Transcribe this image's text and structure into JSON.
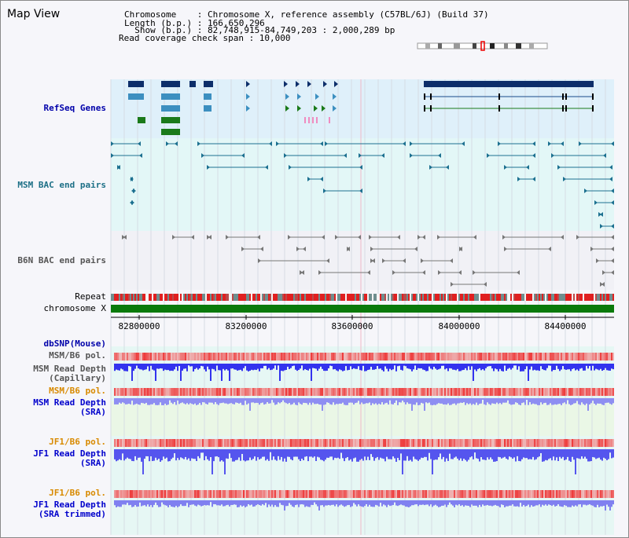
{
  "title": "Map View",
  "info": {
    "chromosome": "Chromosome    : Chromosome X, reference assembly (C57BL/6J) (Build 37)",
    "length": "Length (b.p.) : 166,650,296",
    "show": "  Show (b.p.) : 82,748,915-84,749,203 : 2,000,289 bp",
    "coverage": "Read coverage check span : 10,000"
  },
  "tracks": {
    "refseq": "RefSeq Genes",
    "msm_bac": "MSM BAC end pairs",
    "b6n_bac": "B6N BAC end pairs",
    "repeat": "Repeat",
    "chromosome": "chromosome X",
    "dbsnp": "dbSNP(Mouse)",
    "msm_b6_pol_1": "MSM/B6 pol.",
    "msm_depth_cap": "MSM Read Depth\n(Capillary)",
    "msm_b6_pol_2": "MSM/B6 pol.",
    "msm_depth_sra": "MSM Read Depth\n(SRA)",
    "jf1_b6_pol_1": "JF1/B6 pol.",
    "jf1_depth_sra": "JF1 Read Depth\n(SRA)",
    "jf1_b6_pol_2": "JF1/B6 pol.",
    "jf1_depth_trim": "JF1 Read Depth\n(SRA trimmed)"
  },
  "axis": {
    "ticks": [
      "82800000",
      "83200000",
      "83600000",
      "84000000",
      "84400000"
    ]
  },
  "colors": {
    "refseq_bg": "#dff0fa",
    "msm_bg": "#e3f7f7",
    "gene_dark": "#0d2e6a",
    "gene_light": "#3c8fc0",
    "gene_green": "#1a7a1a",
    "chromosome_bar": "#0a7a0a",
    "pol_red": "#ee4444",
    "depth_blue": "#3333ee",
    "depth_light": "#8e8ef2"
  }
}
